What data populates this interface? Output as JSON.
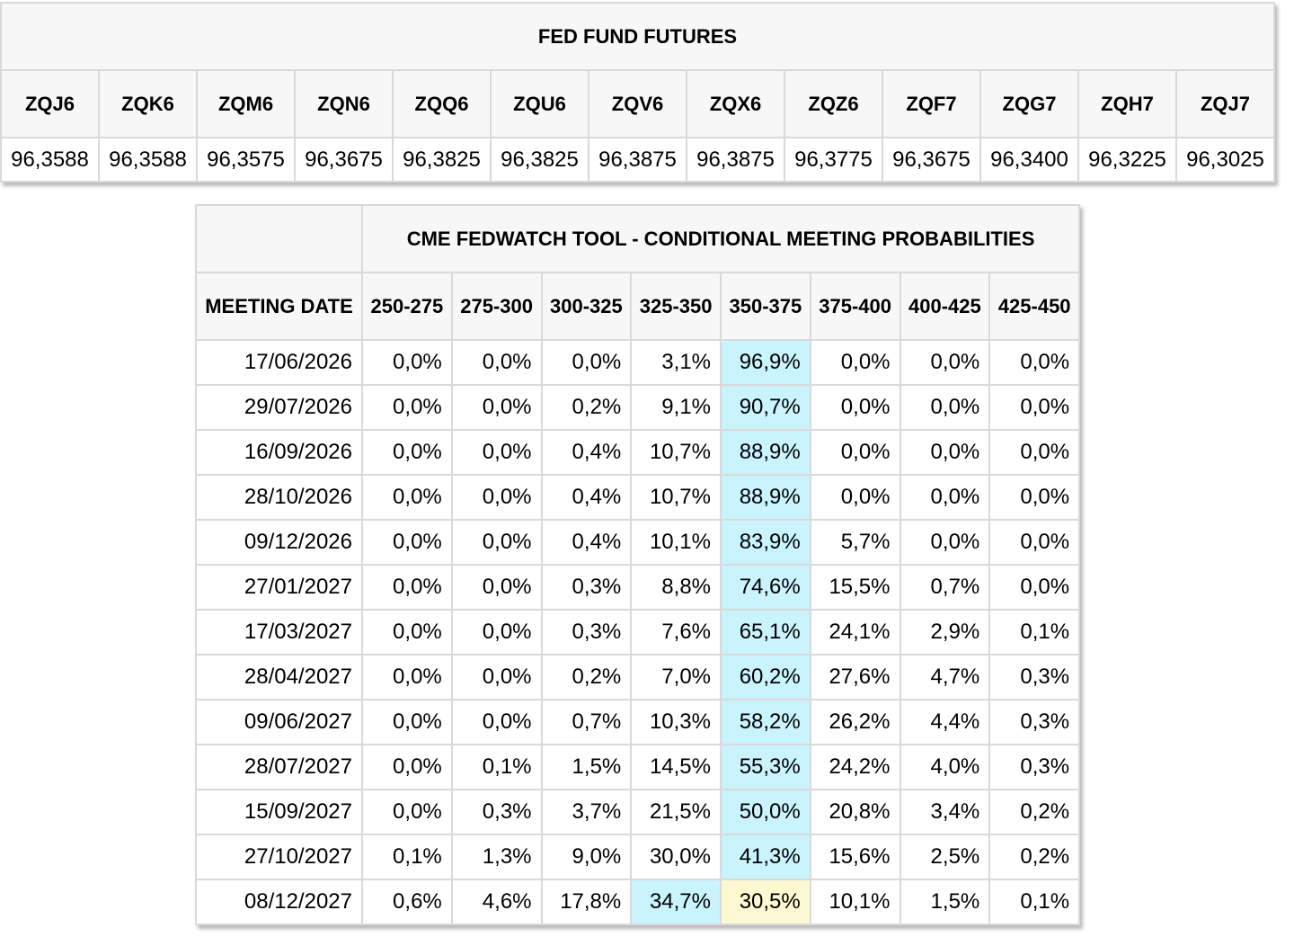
{
  "futures": {
    "title": "FED FUND FUTURES",
    "contracts": [
      {
        "symbol": "ZQJ6",
        "price": "96,3588"
      },
      {
        "symbol": "ZQK6",
        "price": "96,3588"
      },
      {
        "symbol": "ZQM6",
        "price": "96,3575"
      },
      {
        "symbol": "ZQN6",
        "price": "96,3675"
      },
      {
        "symbol": "ZQQ6",
        "price": "96,3825"
      },
      {
        "symbol": "ZQU6",
        "price": "96,3825"
      },
      {
        "symbol": "ZQV6",
        "price": "96,3875"
      },
      {
        "symbol": "ZQX6",
        "price": "96,3875"
      },
      {
        "symbol": "ZQZ6",
        "price": "96,3775"
      },
      {
        "symbol": "ZQF7",
        "price": "96,3675"
      },
      {
        "symbol": "ZQG7",
        "price": "96,3400"
      },
      {
        "symbol": "ZQH7",
        "price": "96,3225"
      },
      {
        "symbol": "ZQJ7",
        "price": "96,3025"
      }
    ]
  },
  "probabilities": {
    "title": "CME FEDWATCH TOOL - CONDITIONAL MEETING PROBABILITIES",
    "date_header": "MEETING DATE",
    "ranges": [
      "250-275",
      "275-300",
      "300-325",
      "325-350",
      "350-375",
      "375-400",
      "400-425",
      "425-450"
    ],
    "highlight_colors": {
      "max": "#c9f3fd",
      "current": "#fbf8d2"
    },
    "rows": [
      {
        "date": "17/06/2026",
        "values": [
          "0,0%",
          "0,0%",
          "0,0%",
          "3,1%",
          "96,9%",
          "0,0%",
          "0,0%",
          "0,0%"
        ],
        "highlights": [
          null,
          null,
          null,
          null,
          "max",
          null,
          null,
          null
        ]
      },
      {
        "date": "29/07/2026",
        "values": [
          "0,0%",
          "0,0%",
          "0,2%",
          "9,1%",
          "90,7%",
          "0,0%",
          "0,0%",
          "0,0%"
        ],
        "highlights": [
          null,
          null,
          null,
          null,
          "max",
          null,
          null,
          null
        ]
      },
      {
        "date": "16/09/2026",
        "values": [
          "0,0%",
          "0,0%",
          "0,4%",
          "10,7%",
          "88,9%",
          "0,0%",
          "0,0%",
          "0,0%"
        ],
        "highlights": [
          null,
          null,
          null,
          null,
          "max",
          null,
          null,
          null
        ]
      },
      {
        "date": "28/10/2026",
        "values": [
          "0,0%",
          "0,0%",
          "0,4%",
          "10,7%",
          "88,9%",
          "0,0%",
          "0,0%",
          "0,0%"
        ],
        "highlights": [
          null,
          null,
          null,
          null,
          "max",
          null,
          null,
          null
        ]
      },
      {
        "date": "09/12/2026",
        "values": [
          "0,0%",
          "0,0%",
          "0,4%",
          "10,1%",
          "83,9%",
          "5,7%",
          "0,0%",
          "0,0%"
        ],
        "highlights": [
          null,
          null,
          null,
          null,
          "max",
          null,
          null,
          null
        ]
      },
      {
        "date": "27/01/2027",
        "values": [
          "0,0%",
          "0,0%",
          "0,3%",
          "8,8%",
          "74,6%",
          "15,5%",
          "0,7%",
          "0,0%"
        ],
        "highlights": [
          null,
          null,
          null,
          null,
          "max",
          null,
          null,
          null
        ]
      },
      {
        "date": "17/03/2027",
        "values": [
          "0,0%",
          "0,0%",
          "0,3%",
          "7,6%",
          "65,1%",
          "24,1%",
          "2,9%",
          "0,1%"
        ],
        "highlights": [
          null,
          null,
          null,
          null,
          "max",
          null,
          null,
          null
        ]
      },
      {
        "date": "28/04/2027",
        "values": [
          "0,0%",
          "0,0%",
          "0,2%",
          "7,0%",
          "60,2%",
          "27,6%",
          "4,7%",
          "0,3%"
        ],
        "highlights": [
          null,
          null,
          null,
          null,
          "max",
          null,
          null,
          null
        ]
      },
      {
        "date": "09/06/2027",
        "values": [
          "0,0%",
          "0,0%",
          "0,7%",
          "10,3%",
          "58,2%",
          "26,2%",
          "4,4%",
          "0,3%"
        ],
        "highlights": [
          null,
          null,
          null,
          null,
          "max",
          null,
          null,
          null
        ]
      },
      {
        "date": "28/07/2027",
        "values": [
          "0,0%",
          "0,1%",
          "1,5%",
          "14,5%",
          "55,3%",
          "24,2%",
          "4,0%",
          "0,3%"
        ],
        "highlights": [
          null,
          null,
          null,
          null,
          "max",
          null,
          null,
          null
        ]
      },
      {
        "date": "15/09/2027",
        "values": [
          "0,0%",
          "0,3%",
          "3,7%",
          "21,5%",
          "50,0%",
          "20,8%",
          "3,4%",
          "0,2%"
        ],
        "highlights": [
          null,
          null,
          null,
          null,
          "max",
          null,
          null,
          null
        ]
      },
      {
        "date": "27/10/2027",
        "values": [
          "0,1%",
          "1,3%",
          "9,0%",
          "30,0%",
          "41,3%",
          "15,6%",
          "2,5%",
          "0,2%"
        ],
        "highlights": [
          null,
          null,
          null,
          null,
          "max",
          null,
          null,
          null
        ]
      },
      {
        "date": "08/12/2027",
        "values": [
          "0,6%",
          "4,6%",
          "17,8%",
          "34,7%",
          "30,5%",
          "10,1%",
          "1,5%",
          "0,1%"
        ],
        "highlights": [
          null,
          null,
          null,
          "max",
          "current",
          null,
          null,
          null
        ]
      }
    ]
  }
}
